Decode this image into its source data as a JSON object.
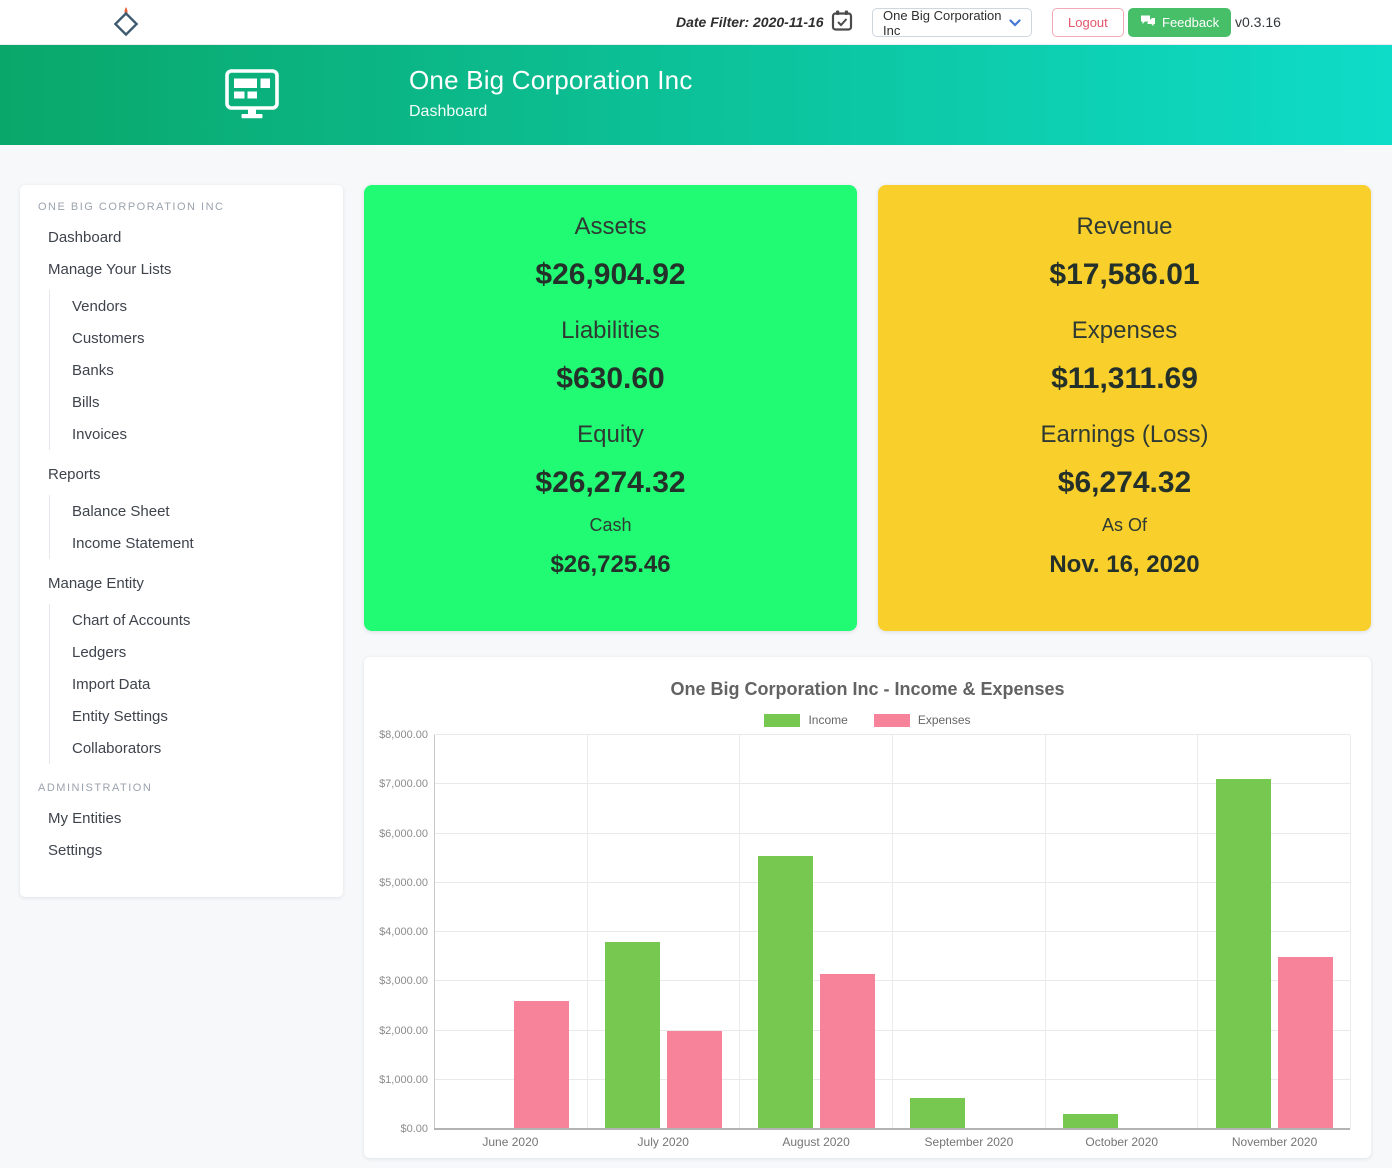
{
  "topbar": {
    "date_filter": "Date Filter: 2020-11-16",
    "entity_dropdown_value": "One Big Corporation Inc",
    "logout_label": "Logout",
    "feedback_label": "Feedback",
    "version": "v0.3.16"
  },
  "header": {
    "title": "One Big Corporation Inc",
    "subtitle": "Dashboard"
  },
  "sidebar": {
    "section_header": "ONE BIG CORPORATION INC",
    "admin_header": "ADMINISTRATION",
    "items": [
      {
        "label": "Dashboard",
        "indent": 0
      },
      {
        "label": "Manage Your Lists",
        "indent": 0
      },
      {
        "label": "Vendors",
        "indent": 1
      },
      {
        "label": "Customers",
        "indent": 1
      },
      {
        "label": "Banks",
        "indent": 1
      },
      {
        "label": "Bills",
        "indent": 1
      },
      {
        "label": "Invoices",
        "indent": 1
      },
      {
        "label": "Reports",
        "indent": 0
      },
      {
        "label": "Balance Sheet",
        "indent": 1
      },
      {
        "label": "Income Statement",
        "indent": 1
      },
      {
        "label": "Manage Entity",
        "indent": 0
      },
      {
        "label": "Chart of Accounts",
        "indent": 1
      },
      {
        "label": "Ledgers",
        "indent": 1
      },
      {
        "label": "Import Data",
        "indent": 1
      },
      {
        "label": "Entity Settings",
        "indent": 1
      },
      {
        "label": "Collaborators",
        "indent": 1
      }
    ],
    "admin_items": [
      {
        "label": "My Entities"
      },
      {
        "label": "Settings"
      }
    ]
  },
  "summary_cards": {
    "balance": {
      "rows": [
        {
          "label": "Assets",
          "value": "$26,904.92"
        },
        {
          "label": "Liabilities",
          "value": "$630.60"
        },
        {
          "label": "Equity",
          "value": "$26,274.32"
        }
      ],
      "footer_label": "Cash",
      "footer_value": "$26,725.46"
    },
    "income": {
      "rows": [
        {
          "label": "Revenue",
          "value": "$17,586.01"
        },
        {
          "label": "Expenses",
          "value": "$11,311.69"
        },
        {
          "label": "Earnings (Loss)",
          "value": "$6,274.32"
        }
      ],
      "footer_label": "As Of",
      "footer_value": "Nov. 16, 2020"
    }
  },
  "chart_data": {
    "type": "bar",
    "title": "One Big Corporation Inc - Income & Expenses",
    "categories": [
      "June 2020",
      "July 2020",
      "August 2020",
      "September 2020",
      "October 2020",
      "November 2020"
    ],
    "series": [
      {
        "name": "Income",
        "color": "#77c850",
        "values": [
          0,
          3800,
          5550,
          630,
          300,
          7100
        ]
      },
      {
        "name": "Expenses",
        "color": "#f7839b",
        "values": [
          2600,
          2000,
          3150,
          0,
          0,
          3500
        ]
      }
    ],
    "ylim": [
      0,
      8000
    ],
    "y_ticks": [
      "$0.00",
      "$1,000.00",
      "$2,000.00",
      "$3,000.00",
      "$4,000.00",
      "$5,000.00",
      "$6,000.00",
      "$7,000.00",
      "$8,000.00"
    ],
    "grid": true,
    "legend_position": "top"
  },
  "icons": {
    "logo": "diamond-flame-icon",
    "calendar": "calendar-check-icon",
    "dropdown": "chevron-down-icon",
    "feedback": "speech-bubbles-icon",
    "header": "dashboard-monitor-icon"
  },
  "colors": {
    "header_gradient_start": "#0aa76a",
    "header_gradient_end": "#0edcc8",
    "balance_card_bg": "#21fb73",
    "income_card_bg": "#f9cf2b",
    "feedback_button": "#47be68",
    "logout_text": "#e4556b"
  }
}
